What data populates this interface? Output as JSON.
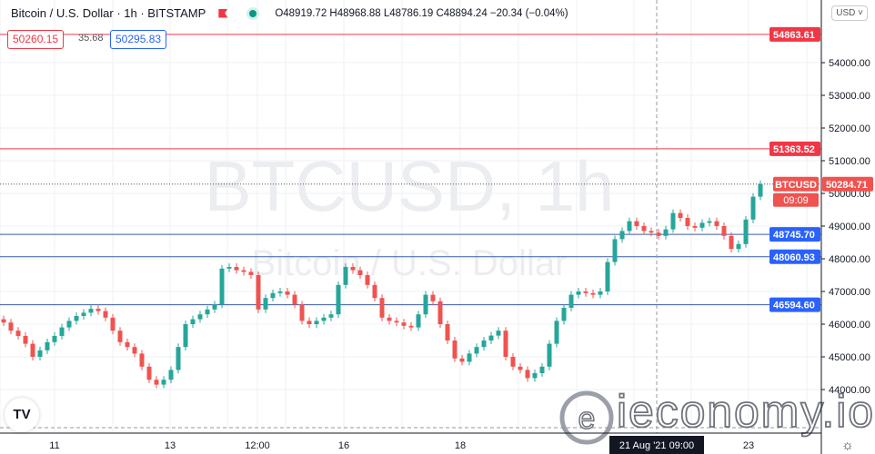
{
  "header": {
    "symbol_title": "Bitcoin / U.S. Dollar · 1h · BITSTAMP",
    "ohlc": "O48919.72 H48968.88 L48786.19 C48894.24 −20.34 (−0.04%)",
    "bid": "50260.15",
    "spread": "35.68",
    "ask": "50295.83",
    "currency": "USD"
  },
  "watermark": {
    "line1": "BTCUSD, 1h",
    "line2": "Bitcoin / U.S. Dollar"
  },
  "logo_watermark": "ieconomy.io",
  "tv_logo": "TV",
  "icons": {
    "settings": "gear-icon",
    "flag": "flag-icon",
    "status": "market-open-dot-icon"
  },
  "colors": {
    "up": "#26a69a",
    "down": "#ef5350",
    "resistance": "#f23645",
    "support": "#2962ff",
    "support_line": "#3a5ba8"
  },
  "chart_data": {
    "type": "candlestick",
    "ylim": [
      42500,
      55200
    ],
    "y_ticks": [
      44000,
      45000,
      46000,
      47000,
      48000,
      49000,
      50000,
      51000,
      52000,
      53000,
      54000
    ],
    "y_tick_labels": [
      "44000.00",
      "45000.00",
      "46000.00",
      "47000.00",
      "48000.00",
      "49000.00",
      "50000.00",
      "51000.00",
      "52000.00",
      "53000.00",
      "54000.00"
    ],
    "x_tick_labels": [
      "11",
      "13",
      "12:00",
      "16",
      "18",
      "23"
    ],
    "crosshair_time_label": "21 Aug '21  09:00",
    "first_open": 46150,
    "closes": [
      46050,
      45800,
      45640,
      45400,
      45000,
      45200,
      45450,
      45640,
      45900,
      46100,
      46250,
      46350,
      46470,
      46400,
      46200,
      45800,
      45450,
      45300,
      45100,
      44700,
      44300,
      44150,
      44300,
      44600,
      45300,
      46000,
      46150,
      46300,
      46450,
      46600,
      47700,
      47750,
      47650,
      47600,
      47500,
      46450,
      46800,
      46950,
      47000,
      46900,
      46600,
      46100,
      46000,
      46100,
      46200,
      46300,
      47200,
      47750,
      47650,
      47500,
      47200,
      46800,
      46200,
      46100,
      46050,
      45950,
      45900,
      46300,
      46900,
      46700,
      46000,
      45500,
      44950,
      44850,
      45100,
      45300,
      45500,
      45650,
      45800,
      45000,
      44700,
      44600,
      44350,
      44500,
      44700,
      45400,
      46100,
      46500,
      46900,
      47000,
      46950,
      46900,
      47000,
      47900,
      48600,
      48850,
      49150,
      49000,
      48850,
      48800,
      48700,
      48900,
      49400,
      49250,
      49000,
      48950,
      49100,
      49150,
      49000,
      48700,
      48300,
      48450,
      49200,
      49900,
      50285
    ],
    "levels": [
      {
        "price": 54863.61,
        "label": "54863.61",
        "kind": "resistance"
      },
      {
        "price": 51363.52,
        "label": "51363.52",
        "kind": "resistance"
      },
      {
        "price": 48745.7,
        "label": "48745.70",
        "kind": "support"
      },
      {
        "price": 48060.93,
        "label": "48060.93",
        "kind": "support"
      },
      {
        "price": 46594.6,
        "label": "46594.60",
        "kind": "support"
      }
    ],
    "last_price": {
      "price": 50284.71,
      "label": "50284.71",
      "countdown": "09:09",
      "symbol": "BTCUSD"
    },
    "grid": true
  }
}
